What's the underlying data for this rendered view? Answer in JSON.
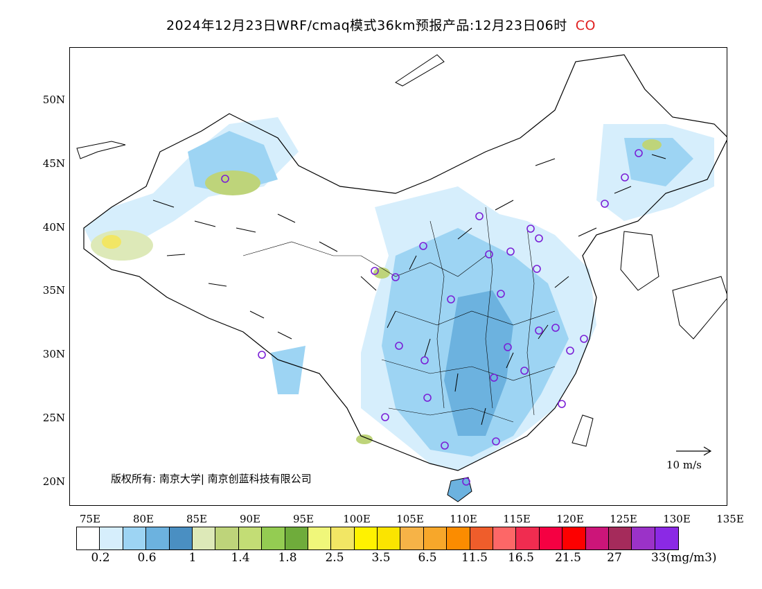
{
  "title": "2024年12月23日WRF/cmaq模式36km预报产品:12月23日06时",
  "species": "CO",
  "copyright": "版权所有: 南京大学| 南京创蓝科技有限公司",
  "wind_scale": "10 m/s",
  "lat_ticks": [
    "50N",
    "45N",
    "40N",
    "35N",
    "30N",
    "25N",
    "20N"
  ],
  "lon_ticks": [
    "75E",
    "80E",
    "85E",
    "90E",
    "95E",
    "100E",
    "105E",
    "110E",
    "115E",
    "120E",
    "125E",
    "130E",
    "135E"
  ],
  "colorbar": {
    "colors": [
      "#ffffff",
      "#d6eefc",
      "#9dd4f3",
      "#6cb2df",
      "#4a8fc2",
      "#dde9b8",
      "#bed47a",
      "#c3dd75",
      "#94cc52",
      "#6fac3b",
      "#f0f77a",
      "#f2e664",
      "#fff200",
      "#fbe400",
      "#f6b347",
      "#f7a72a",
      "#fb8c00",
      "#ef5d2b",
      "#fd6767",
      "#f02c50",
      "#f50042",
      "#fd0000",
      "#cc1579",
      "#a52b5b",
      "#9b32c8",
      "#8b29e5"
    ],
    "labels": [
      "0.2",
      "0.6",
      "1",
      "1.4",
      "1.8",
      "2.5",
      "3.5",
      "6.5",
      "11.5",
      "16.5",
      "21.5",
      "27",
      "33(mg/m3)"
    ]
  },
  "station_marker_color": "#7a1fd6"
}
